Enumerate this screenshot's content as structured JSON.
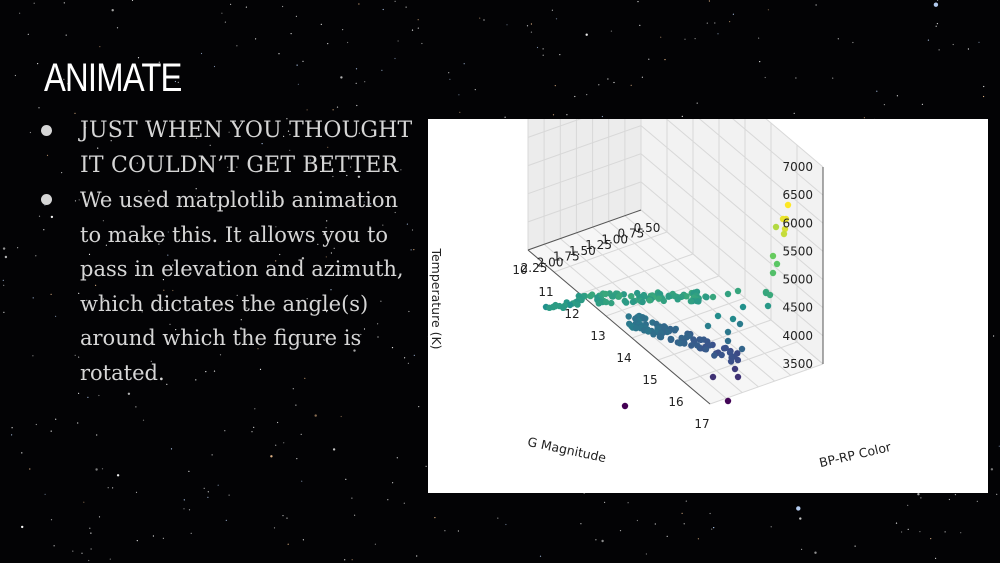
{
  "slide": {
    "title": "ANIMATE",
    "bullets": [
      "JUST WHEN YOU THOUGHT IT COULDN’T GET BETTER",
      "We used matplotlib animation to make this. It allows you to pass in elevation and azimuth, which dictates the angle(s) around which the figure is rotated."
    ]
  },
  "colors": {
    "background": "#030305",
    "title": "#ffffff",
    "text": "#d6d6d6",
    "plot_background": "#ffffff",
    "colormap": "viridis"
  },
  "chart_data": {
    "type": "scatter",
    "projection": "3d",
    "xlabel": "G Magnitude",
    "ylabel": "BP-RP Color",
    "zlabel": "Temperature (K)",
    "x_ticks": [
      "17",
      "16",
      "15",
      "14",
      "13",
      "12",
      "11",
      "10"
    ],
    "y_ticks": [
      "2.25",
      "2.00",
      "1.75",
      "1.50",
      "1.25",
      "1.00",
      "0.75",
      "0.50"
    ],
    "z_ticks": [
      "7000",
      "6500",
      "6000",
      "5500",
      "5000",
      "4500",
      "4000",
      "3500"
    ],
    "xlim": [
      10,
      17
    ],
    "ylim": [
      0.5,
      2.25
    ],
    "zlim": [
      3500,
      7000
    ],
    "grid": true
  }
}
